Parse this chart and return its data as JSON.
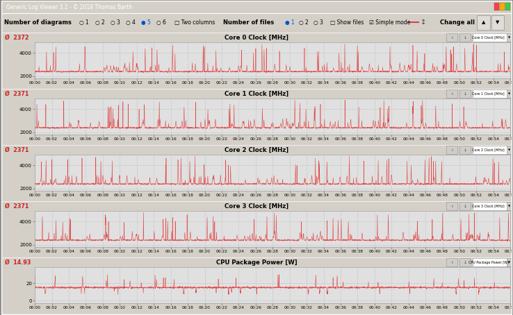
{
  "title_bar": "Generic Log Viewer 3.2 - © 2018 Thomas Barth",
  "panels": [
    {
      "title": "Core 0 Clock [MHz]",
      "avg_label": "2372",
      "ylim": [
        1800,
        4900
      ],
      "yticks": [
        2000,
        4000
      ],
      "is_power": false
    },
    {
      "title": "Core 1 Clock [MHz]",
      "avg_label": "2371",
      "ylim": [
        1800,
        4900
      ],
      "yticks": [
        2000,
        4000
      ],
      "is_power": false
    },
    {
      "title": "Core 2 Clock [MHz]",
      "avg_label": "2371",
      "ylim": [
        1800,
        4900
      ],
      "yticks": [
        2000,
        4000
      ],
      "is_power": false
    },
    {
      "title": "Core 3 Clock [MHz]",
      "avg_label": "2371",
      "ylim": [
        1800,
        4900
      ],
      "yticks": [
        2000,
        4000
      ],
      "is_power": false
    },
    {
      "title": "CPU Package Power [W]",
      "avg_label": "14.93",
      "ylim": [
        -3,
        38
      ],
      "yticks": [
        0,
        20
      ],
      "is_power": true
    }
  ],
  "total_seconds": 3360,
  "bg_color": "#d4d0c8",
  "plot_bg_color": "#e0e0e0",
  "header_bg_color": "#c8c4bc",
  "line_color": "#e04040",
  "avg_color": "#cc2020",
  "title_color": "#000000",
  "titlebar_bg": "#0a246a",
  "titlebar_fg": "#ffffff"
}
